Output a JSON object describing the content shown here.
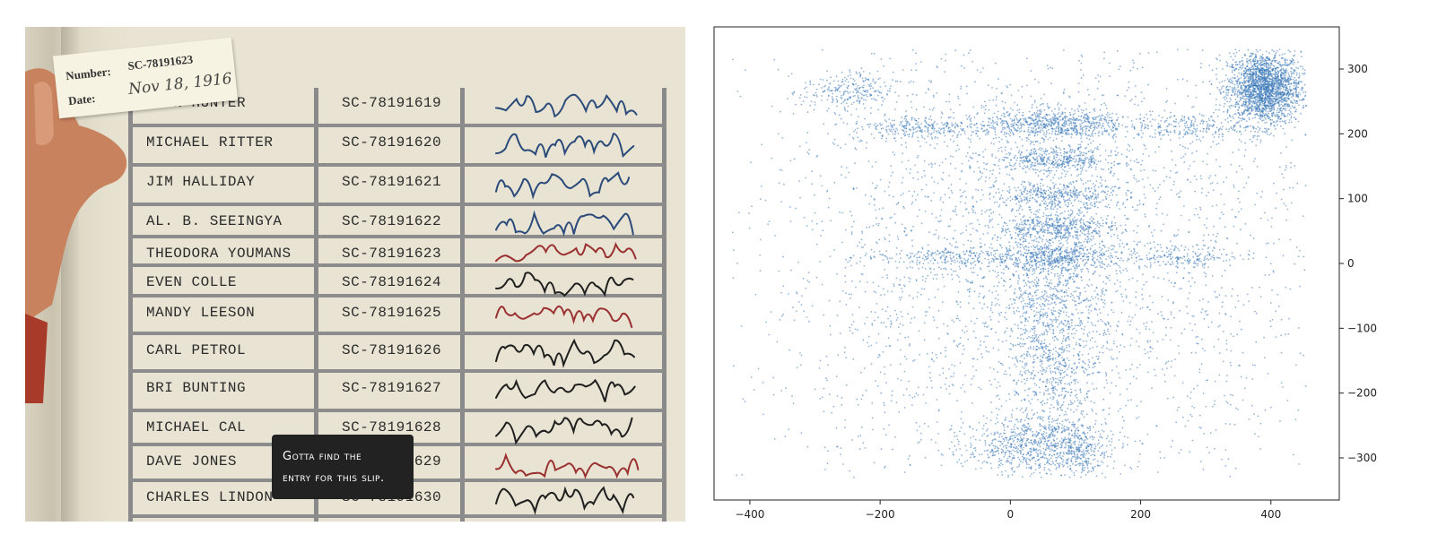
{
  "slip": {
    "number_label": "Number:",
    "number_value": "SC-78191623",
    "date_label": "Date:",
    "date_value": "Nov 18, 1916"
  },
  "ledger": {
    "rows": [
      {
        "name": "JOHN HUNTER",
        "serial": "SC-78191619",
        "ink": "#2a4a7a"
      },
      {
        "name": "MICHAEL RITTER",
        "serial": "SC-78191620",
        "ink": "#2a4a7a"
      },
      {
        "name": "JIM HALLIDAY",
        "serial": "SC-78191621",
        "ink": "#2a4a7a"
      },
      {
        "name": "AL. B. SEEINGYA",
        "serial": "SC-78191622",
        "ink": "#2a4a7a"
      },
      {
        "name": "THEODORA YOUMANS",
        "serial": "SC-78191623",
        "ink": "#9a3030"
      },
      {
        "name": "EVEN COLLE",
        "serial": "SC-78191624",
        "ink": "#1f1f1f"
      },
      {
        "name": "MANDY LEESON",
        "serial": "SC-78191625",
        "ink": "#9a3030"
      },
      {
        "name": "CARL PETROL",
        "serial": "SC-78191626",
        "ink": "#1f1f1f"
      },
      {
        "name": "BRI BUNTING",
        "serial": "SC-78191627",
        "ink": "#1f1f1f"
      },
      {
        "name": "MICHAEL CAL",
        "serial": "SC-78191628",
        "ink": "#1f1f1f"
      },
      {
        "name": "DAVE JONES",
        "serial": "SC-78191629",
        "ink": "#9a3030"
      },
      {
        "name": "CHARLES LINDON",
        "serial": "SC-78191630",
        "ink": "#1f1f1f"
      }
    ]
  },
  "tooltip": {
    "line1": "Gotta find the",
    "line2": "entry for this slip."
  },
  "chart_data": {
    "type": "scatter",
    "title": "",
    "xlabel": "",
    "ylabel": "",
    "xlim": [
      -455,
      505
    ],
    "ylim": [
      -365,
      365
    ],
    "x_ticks": [
      -400,
      -200,
      0,
      200,
      400
    ],
    "y_ticks": [
      300,
      200,
      100,
      0,
      -100,
      -200,
      -300
    ],
    "y_axis_side": "right",
    "grid": false,
    "legend": "none",
    "point_color": "#3a78b8",
    "clusters": [
      {
        "cx": 390,
        "cy": 270,
        "sx": 28,
        "sy": 28,
        "n": 2200
      },
      {
        "cx": 70,
        "cy": 215,
        "sx": 55,
        "sy": 12,
        "n": 700
      },
      {
        "cx": 70,
        "cy": 160,
        "sx": 48,
        "sy": 10,
        "n": 450
      },
      {
        "cx": 70,
        "cy": 105,
        "sx": 45,
        "sy": 10,
        "n": 380
      },
      {
        "cx": 70,
        "cy": 55,
        "sx": 45,
        "sy": 10,
        "n": 420
      },
      {
        "cx": 70,
        "cy": 10,
        "sx": 55,
        "sy": 10,
        "n": 500
      },
      {
        "cx": 60,
        "cy": -60,
        "sx": 40,
        "sy": 60,
        "n": 700
      },
      {
        "cx": 70,
        "cy": -180,
        "sx": 30,
        "sy": 45,
        "n": 350
      },
      {
        "cx": 30,
        "cy": -280,
        "sx": 50,
        "sy": 22,
        "n": 700
      },
      {
        "cx": 110,
        "cy": -290,
        "sx": 25,
        "sy": 20,
        "n": 250
      },
      {
        "cx": -250,
        "cy": 265,
        "sx": 35,
        "sy": 15,
        "n": 250
      },
      {
        "cx": -130,
        "cy": 210,
        "sx": 60,
        "sy": 10,
        "n": 300
      },
      {
        "cx": 270,
        "cy": 210,
        "sx": 40,
        "sy": 10,
        "n": 200
      },
      {
        "cx": -110,
        "cy": 10,
        "sx": 60,
        "sy": 8,
        "n": 200
      },
      {
        "cx": 270,
        "cy": 10,
        "sx": 40,
        "sy": 8,
        "n": 150
      },
      {
        "cx": 50,
        "cy": 0,
        "sx": 220,
        "sy": 190,
        "n": 3500
      }
    ]
  }
}
